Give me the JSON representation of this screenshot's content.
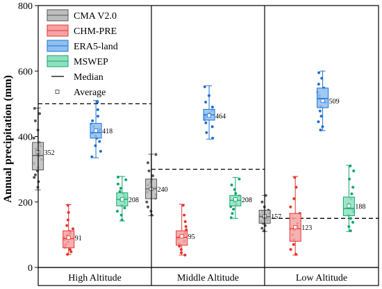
{
  "chart_data": {
    "type": "box",
    "ylabel": "Annual precipitation (mm)",
    "ylim": [
      0,
      800
    ],
    "yticks": [
      0,
      200,
      400,
      600,
      800
    ],
    "grid": false,
    "legend_position": "top-left",
    "categories": [
      "High Altitude",
      "Middle Altitude",
      "Low Altitude"
    ],
    "reference_lines": [
      500,
      300,
      150
    ],
    "legend_extra": {
      "median_label": "Median",
      "average_label": "Average"
    },
    "series": [
      {
        "name": "CMA V2.0",
        "color": "#555555",
        "fill": "#bdbdbd",
        "stats": [
          {
            "whisker_low": 237,
            "q1": 298,
            "median": 342,
            "q3": 382,
            "whisker_high": 487,
            "mean": 352,
            "mean_label": "352"
          },
          {
            "whisker_low": 158,
            "q1": 210,
            "median": 240,
            "q3": 270,
            "whisker_high": 346,
            "mean": 240,
            "mean_label": "240"
          },
          {
            "whisker_low": 110,
            "q1": 135,
            "median": 155,
            "q3": 175,
            "whisker_high": 220,
            "mean": 157,
            "mean_label": "157"
          }
        ],
        "points": [
          [
            245,
            262,
            275,
            283,
            295,
            305,
            318,
            330,
            340,
            352,
            362,
            371,
            381,
            395,
            420,
            448,
            470,
            486
          ],
          [
            160,
            172,
            185,
            200,
            212,
            222,
            230,
            238,
            244,
            252,
            260,
            268,
            280,
            295,
            320,
            345
          ],
          [
            112,
            120,
            128,
            135,
            140,
            145,
            150,
            155,
            160,
            165,
            170,
            175,
            185,
            200,
            220
          ]
        ]
      },
      {
        "name": "CHM-PRE",
        "color": "#e8332e",
        "fill": "#f5a3a3",
        "stats": [
          {
            "whisker_low": 40,
            "q1": 60,
            "median": 88,
            "q3": 112,
            "whisker_high": 192,
            "mean": 91,
            "mean_label": "91"
          },
          {
            "whisker_low": 38,
            "q1": 68,
            "median": 92,
            "q3": 112,
            "whisker_high": 193,
            "mean": 95,
            "mean_label": "95"
          },
          {
            "whisker_low": 38,
            "q1": 80,
            "median": 118,
            "q3": 165,
            "whisker_high": 278,
            "mean": 123,
            "mean_label": "123"
          }
        ],
        "points": [
          [
            40,
            48,
            55,
            62,
            70,
            78,
            85,
            92,
            98,
            105,
            110,
            118,
            128,
            145,
            168,
            190
          ],
          [
            38,
            45,
            55,
            65,
            72,
            80,
            88,
            95,
            102,
            108,
            115,
            125,
            140,
            160,
            190
          ],
          [
            40,
            55,
            70,
            85,
            100,
            115,
            125,
            135,
            150,
            165,
            185,
            210,
            245,
            275
          ]
        ]
      },
      {
        "name": "ERA5-land",
        "color": "#1f6fd1",
        "fill": "#8ec0f0",
        "stats": [
          {
            "whisker_low": 335,
            "q1": 395,
            "median": 412,
            "q3": 440,
            "whisker_high": 510,
            "mean": 418,
            "mean_label": "418"
          },
          {
            "whisker_low": 392,
            "q1": 450,
            "median": 466,
            "q3": 483,
            "whisker_high": 555,
            "mean": 464,
            "mean_label": "464"
          },
          {
            "whisker_low": 418,
            "q1": 488,
            "median": 516,
            "q3": 548,
            "whisker_high": 600,
            "mean": 509,
            "mean_label": "509"
          }
        ],
        "points": [
          [
            338,
            355,
            372,
            385,
            395,
            402,
            410,
            416,
            422,
            430,
            438,
            448,
            462,
            482,
            505
          ],
          [
            395,
            412,
            430,
            442,
            452,
            460,
            466,
            472,
            480,
            490,
            505,
            525,
            552
          ],
          [
            420,
            430,
            445,
            462,
            478,
            492,
            505,
            515,
            525,
            535,
            548,
            560,
            578,
            595
          ]
        ]
      },
      {
        "name": "MSWEP",
        "color": "#14a56a",
        "fill": "#8ee0bf",
        "stats": [
          {
            "whisker_low": 142,
            "q1": 188,
            "median": 208,
            "q3": 228,
            "whisker_high": 278,
            "mean": 208,
            "mean_label": "208"
          },
          {
            "whisker_low": 150,
            "q1": 188,
            "median": 205,
            "q3": 220,
            "whisker_high": 275,
            "mean": 208,
            "mean_label": "208"
          },
          {
            "whisker_low": 110,
            "q1": 158,
            "median": 180,
            "q3": 215,
            "whisker_high": 312,
            "mean": 188,
            "mean_label": "188"
          }
        ],
        "points": [
          [
            145,
            160,
            172,
            182,
            190,
            198,
            205,
            212,
            218,
            225,
            232,
            242,
            255,
            268,
            276
          ],
          [
            152,
            165,
            178,
            186,
            194,
            200,
            206,
            212,
            218,
            226,
            238,
            252,
            270
          ],
          [
            112,
            125,
            138,
            150,
            160,
            170,
            178,
            185,
            195,
            210,
            225,
            245,
            270,
            295,
            310
          ]
        ]
      }
    ]
  }
}
